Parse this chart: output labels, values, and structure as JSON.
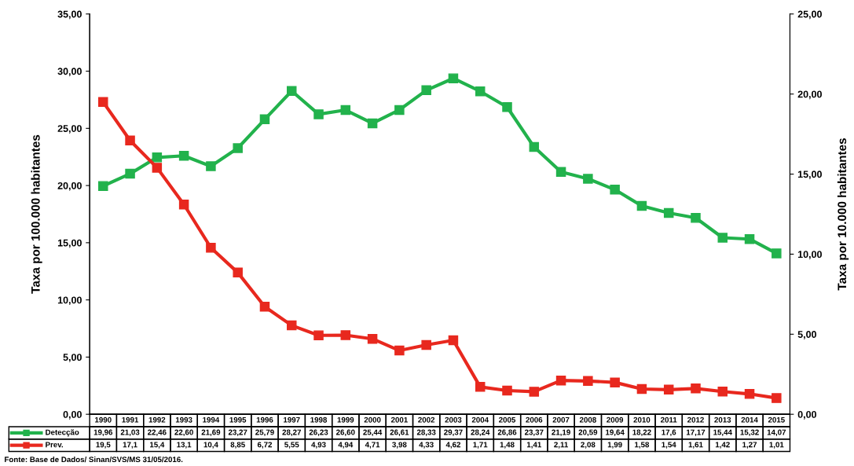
{
  "chart_data": {
    "type": "line",
    "ylabel": "Taxa por 100.000 habitantes",
    "y2label": "Taxa por 10.000 habitantes",
    "categories": [
      "1990",
      "1991",
      "1992",
      "1993",
      "1994",
      "1995",
      "1996",
      "1997",
      "1998",
      "1999",
      "2000",
      "2001",
      "2002",
      "2003",
      "2004",
      "2005",
      "2006",
      "2007",
      "2008",
      "2009",
      "2010",
      "2011",
      "2012",
      "2013",
      "2014",
      "2015"
    ],
    "series": [
      {
        "name": "Detecção",
        "color": "#22b24c",
        "values": [
          19.96,
          21.03,
          22.46,
          22.6,
          21.69,
          23.27,
          25.79,
          28.27,
          26.23,
          26.6,
          25.44,
          26.61,
          28.33,
          29.37,
          28.24,
          26.86,
          23.37,
          21.19,
          20.59,
          19.64,
          18.22,
          17.6,
          17.17,
          15.44,
          15.32,
          14.07
        ],
        "value_labels": [
          "19,96",
          "21,03",
          "22,46",
          "22,60",
          "21,69",
          "23,27",
          "25,79",
          "28,27",
          "26,23",
          "26,60",
          "25,44",
          "26,61",
          "28,33",
          "29,37",
          "28,24",
          "26,86",
          "23,37",
          "21,19",
          "20,59",
          "19,64",
          "18,22",
          "17,6",
          "17,17",
          "15,44",
          "15,32",
          "14,07"
        ]
      },
      {
        "name": "Prev.",
        "color": "#e8281e",
        "axis": "y2",
        "values": [
          19.5,
          17.1,
          15.4,
          13.1,
          10.4,
          8.85,
          6.72,
          5.55,
          4.93,
          4.94,
          4.71,
          3.98,
          4.33,
          4.62,
          1.71,
          1.48,
          1.41,
          2.11,
          2.08,
          1.99,
          1.58,
          1.54,
          1.61,
          1.42,
          1.27,
          1.01
        ],
        "value_labels": [
          "19,5",
          "17,1",
          "15,4",
          "13,1",
          "10,4",
          "8,85",
          "6,72",
          "5,55",
          "4,93",
          "4,94",
          "4,71",
          "3,98",
          "4,33",
          "4,62",
          "1,71",
          "1,48",
          "1,41",
          "2,11",
          "2,08",
          "1,99",
          "1,58",
          "1,54",
          "1,61",
          "1,42",
          "1,27",
          "1,01"
        ]
      }
    ],
    "ylim": [
      0,
      35
    ],
    "yticks": [
      {
        "value": 0,
        "label": "0,00"
      },
      {
        "value": 5,
        "label": "5,00"
      },
      {
        "value": 10,
        "label": "10,00"
      },
      {
        "value": 15,
        "label": "15,00"
      },
      {
        "value": 20,
        "label": "20,00"
      },
      {
        "value": 25,
        "label": "25,00"
      },
      {
        "value": 30,
        "label": "30,00"
      },
      {
        "value": 35,
        "label": "35,00"
      }
    ],
    "y2lim": [
      0,
      25
    ],
    "y2ticks": [
      {
        "value": 0,
        "label": "0,00"
      },
      {
        "value": 5,
        "label": "5,00"
      },
      {
        "value": 10,
        "label": "10,00"
      },
      {
        "value": 15,
        "label": "15,00"
      },
      {
        "value": 20,
        "label": "20,00"
      },
      {
        "value": 25,
        "label": "25,00"
      }
    ],
    "marker": "square",
    "line_style": "solid",
    "grid": false,
    "legend": "bottom",
    "annotations": [
      "Fonte: Base de Dados/ Sinan/SVS/MS 31/05/2016."
    ]
  }
}
